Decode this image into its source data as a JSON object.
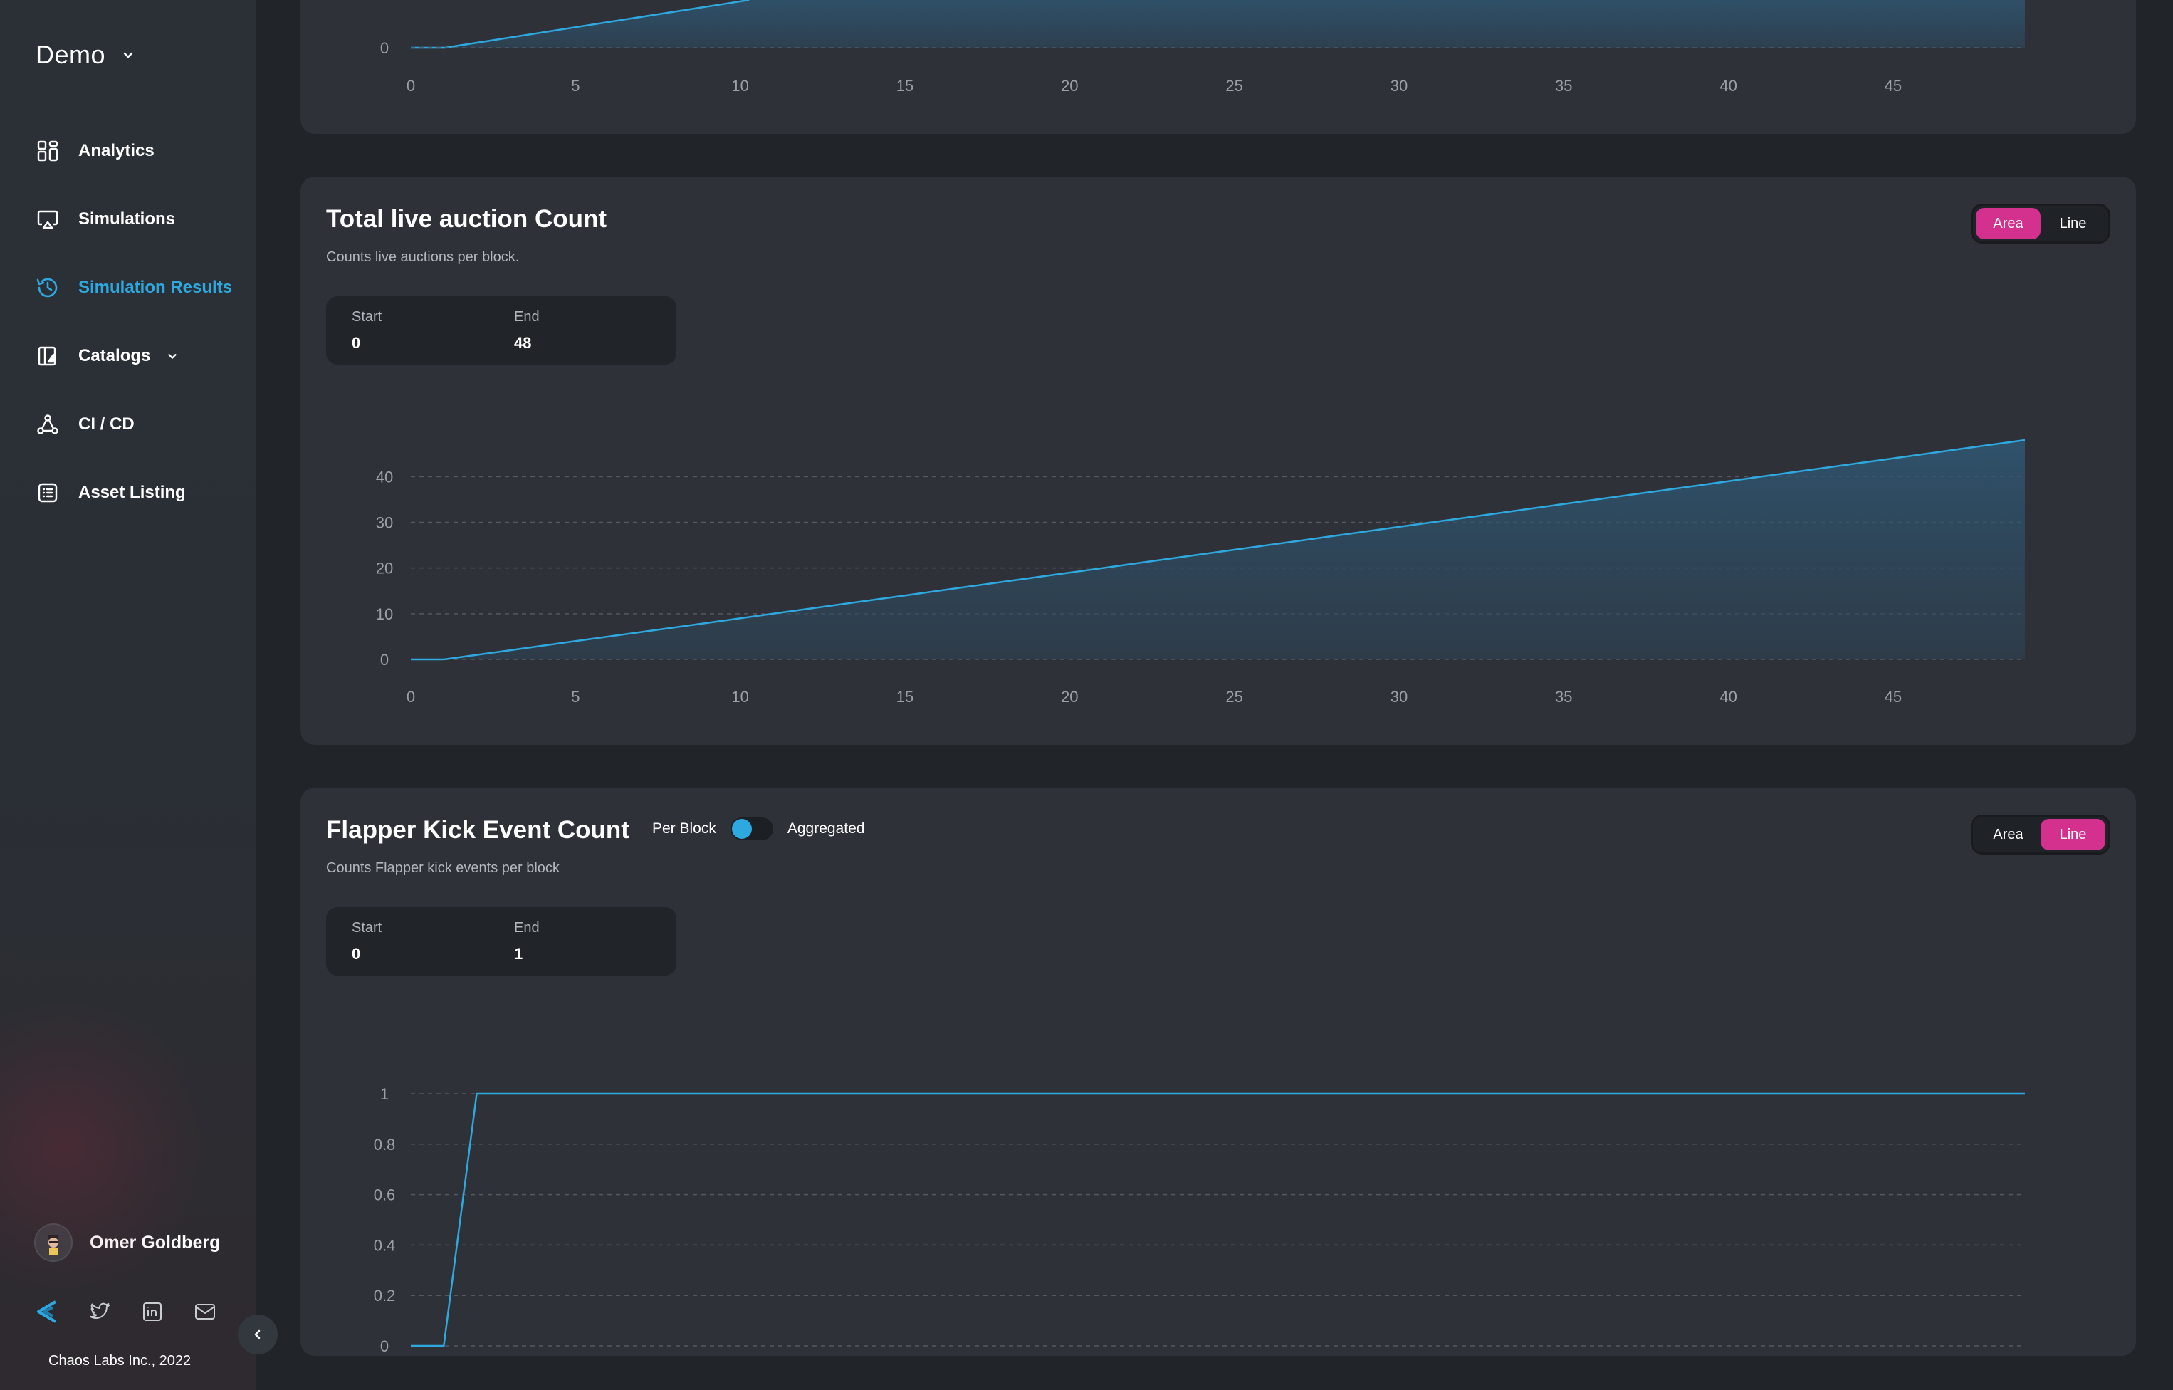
{
  "app": {
    "workspace": "Demo"
  },
  "sidebar": {
    "items": [
      {
        "label": "Analytics",
        "icon": "dashboard-grid-icon"
      },
      {
        "label": "Simulations",
        "icon": "screen-cast-icon"
      },
      {
        "label": "Simulation Results",
        "icon": "history-icon",
        "active": true
      },
      {
        "label": "Catalogs",
        "icon": "catalog-book-icon",
        "expandable": true
      },
      {
        "label": "CI / CD",
        "icon": "pipeline-nodes-icon"
      },
      {
        "label": "Asset Listing",
        "icon": "list-table-icon"
      }
    ],
    "user": {
      "name": "Omer Goldberg"
    },
    "socials": [
      "chaos-labs-logo-icon",
      "twitter-icon",
      "linkedin-icon",
      "mail-icon"
    ],
    "copyright": "Chaos Labs Inc., 2022",
    "colors": {
      "accent": "#2ea9e0",
      "active_toggle": "#d4318f"
    }
  },
  "cards": [
    {
      "id": "top-partial",
      "x_ticks": [
        "0",
        "5",
        "10",
        "15",
        "20",
        "25",
        "30",
        "35",
        "40",
        "45"
      ],
      "y_tick_visible": "0"
    },
    {
      "id": "live-auction",
      "title": "Total live auction Count",
      "subtitle": "Counts live auctions per block.",
      "range": {
        "start_label": "Start",
        "start": "0",
        "end_label": "End",
        "end": "48"
      },
      "view_toggle": {
        "options": [
          "Area",
          "Line"
        ],
        "selected": "Area"
      }
    },
    {
      "id": "flapper-kick",
      "title": "Flapper Kick Event Count",
      "subtitle": "Counts Flapper kick events per block",
      "mode_toggle": {
        "left": "Per Block",
        "right": "Aggregated",
        "selected": "Per Block"
      },
      "range": {
        "start_label": "Start",
        "start": "0",
        "end_label": "End",
        "end": "1"
      },
      "view_toggle": {
        "options": [
          "Area",
          "Line"
        ],
        "selected": "Line"
      }
    }
  ],
  "chart_data": [
    {
      "type": "area",
      "title": "Total live auction Count",
      "x": [
        0,
        1,
        2,
        3,
        4,
        5,
        6,
        7,
        8,
        9,
        10,
        11,
        12,
        13,
        14,
        15,
        16,
        17,
        18,
        19,
        20,
        21,
        22,
        23,
        24,
        25,
        26,
        27,
        28,
        29,
        30,
        31,
        32,
        33,
        34,
        35,
        36,
        37,
        38,
        39,
        40,
        41,
        42,
        43,
        44,
        45,
        46,
        47,
        48,
        49
      ],
      "series": [
        {
          "values": [
            0,
            0,
            1,
            2,
            3,
            4,
            5,
            6,
            7,
            8,
            9,
            10,
            11,
            12,
            13,
            14,
            15,
            16,
            17,
            18,
            19,
            20,
            21,
            22,
            23,
            24,
            25,
            26,
            27,
            28,
            29,
            30,
            31,
            32,
            33,
            34,
            35,
            36,
            37,
            38,
            39,
            40,
            41,
            42,
            43,
            44,
            45,
            46,
            47,
            48
          ]
        }
      ],
      "x_ticks": [
        0,
        5,
        10,
        15,
        20,
        25,
        30,
        35,
        40,
        45
      ],
      "y_ticks": [
        0,
        10,
        20,
        30,
        40
      ],
      "xlim": [
        0,
        49
      ],
      "ylim": [
        0,
        48
      ],
      "grid": true,
      "color": "#2ea9e0"
    },
    {
      "type": "line",
      "title": "Flapper Kick Event Count",
      "x": [
        0,
        1,
        2,
        3,
        4,
        5,
        6,
        7,
        8,
        9,
        10,
        11,
        12,
        13,
        14,
        15,
        16,
        17,
        18,
        19,
        20,
        21,
        22,
        23,
        24,
        25,
        26,
        27,
        28,
        29,
        30,
        31,
        32,
        33,
        34,
        35,
        36,
        37,
        38,
        39,
        40,
        41,
        42,
        43,
        44,
        45,
        46,
        47,
        48,
        49
      ],
      "series": [
        {
          "values": [
            0,
            0,
            1,
            1,
            1,
            1,
            1,
            1,
            1,
            1,
            1,
            1,
            1,
            1,
            1,
            1,
            1,
            1,
            1,
            1,
            1,
            1,
            1,
            1,
            1,
            1,
            1,
            1,
            1,
            1,
            1,
            1,
            1,
            1,
            1,
            1,
            1,
            1,
            1,
            1,
            1,
            1,
            1,
            1,
            1,
            1,
            1,
            1,
            1,
            1
          ]
        }
      ],
      "x_ticks": [
        0,
        5,
        10,
        15,
        20,
        25,
        30,
        35,
        40,
        45
      ],
      "y_ticks": [
        "0",
        "0.2",
        "0.4",
        "0.6",
        "0.8",
        "1"
      ],
      "xlim": [
        0,
        49
      ],
      "ylim": [
        0,
        1
      ],
      "grid": true,
      "color": "#2ea9e0"
    }
  ]
}
